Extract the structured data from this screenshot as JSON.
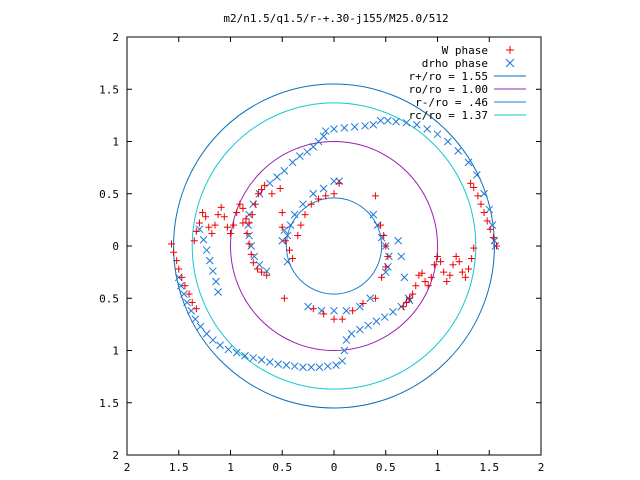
{
  "chart_data": {
    "type": "scatter",
    "title": "m2/n1.5/q1.5/r-+.30-j155/M25.0/512",
    "xlabel": "",
    "ylabel": "",
    "xlim": [
      -2,
      2
    ],
    "ylim": [
      -2,
      2
    ],
    "x_ticks": [
      -2,
      -1.5,
      -1,
      -0.5,
      0,
      0.5,
      1,
      1.5,
      2
    ],
    "y_ticks": [
      -2,
      -1.5,
      -1,
      -0.5,
      0,
      0.5,
      1,
      1.5,
      2
    ],
    "x_tick_labels": [
      "2",
      "1.5",
      "1",
      "0.5",
      "0",
      "0.5",
      "1",
      "1.5",
      "2"
    ],
    "y_tick_labels": [
      "2",
      "1.5",
      "1",
      "0.5",
      "0",
      "0.5",
      "1",
      "1.5",
      "2"
    ],
    "grid": false,
    "legend_position": "top-right",
    "circles": [
      {
        "name": "r+/ro = 1.55",
        "radius": 1.55,
        "color": "#0b6fb8"
      },
      {
        "name": "ro/ro = 1.00",
        "radius": 1.0,
        "color": "#9b20b5"
      },
      {
        "name": "r-/ro = .46",
        "radius": 0.46,
        "color": "#1a7fd0"
      },
      {
        "name": "rc/ro = 1.37",
        "radius": 1.37,
        "color": "#14c8d2"
      }
    ],
    "series": [
      {
        "name": "W phase",
        "marker": "plus",
        "color": "#ee0000",
        "points": [
          [
            -1.57,
            0.02
          ],
          [
            -1.55,
            -0.06
          ],
          [
            -1.52,
            -0.14
          ],
          [
            -1.5,
            -0.22
          ],
          [
            -1.47,
            -0.3
          ],
          [
            -1.44,
            -0.38
          ],
          [
            -1.4,
            -0.46
          ],
          [
            -1.37,
            -0.54
          ],
          [
            -1.33,
            -0.6
          ],
          [
            -1.35,
            0.05
          ],
          [
            -1.33,
            0.14
          ],
          [
            -1.3,
            0.22
          ],
          [
            -1.27,
            0.32
          ],
          [
            -1.24,
            0.28
          ],
          [
            -1.21,
            0.18
          ],
          [
            -1.18,
            0.12
          ],
          [
            -1.15,
            0.2
          ],
          [
            -1.12,
            0.3
          ],
          [
            -1.09,
            0.37
          ],
          [
            -1.06,
            0.28
          ],
          [
            -1.03,
            0.18
          ],
          [
            -1.0,
            0.12
          ],
          [
            -0.97,
            0.2
          ],
          [
            -0.94,
            0.32
          ],
          [
            -0.91,
            0.4
          ],
          [
            -0.88,
            0.36
          ],
          [
            -0.85,
            0.26
          ],
          [
            -0.82,
            0.22
          ],
          [
            -0.79,
            0.3
          ],
          [
            -0.76,
            0.4
          ],
          [
            -0.73,
            0.5
          ],
          [
            -0.7,
            0.54
          ],
          [
            -0.67,
            0.58
          ],
          [
            -0.88,
            0.22
          ],
          [
            -0.84,
            0.12
          ],
          [
            -0.82,
            0.02
          ],
          [
            -0.8,
            -0.08
          ],
          [
            -0.78,
            -0.16
          ],
          [
            -0.74,
            -0.22
          ],
          [
            -0.7,
            -0.25
          ],
          [
            -0.65,
            -0.28
          ],
          [
            -0.6,
            0.5
          ],
          [
            -0.52,
            0.55
          ],
          [
            -0.5,
            0.32
          ],
          [
            -0.5,
            0.18
          ],
          [
            -0.47,
            0.05
          ],
          [
            -0.43,
            -0.04
          ],
          [
            -0.4,
            -0.12
          ],
          [
            -0.35,
            0.1
          ],
          [
            -0.32,
            0.2
          ],
          [
            -0.28,
            0.3
          ],
          [
            -0.22,
            0.4
          ],
          [
            -0.15,
            0.45
          ],
          [
            -0.08,
            0.48
          ],
          [
            0.0,
            0.5
          ],
          [
            0.05,
            0.6
          ],
          [
            -0.48,
            -0.5
          ],
          [
            0.4,
            0.48
          ],
          [
            0.45,
            0.2
          ],
          [
            0.48,
            0.1
          ],
          [
            0.5,
            0.0
          ],
          [
            0.52,
            -0.1
          ],
          [
            0.5,
            -0.2
          ],
          [
            0.46,
            -0.3
          ],
          [
            0.4,
            -0.5
          ],
          [
            -0.2,
            -0.6
          ],
          [
            -0.1,
            -0.65
          ],
          [
            0.0,
            -0.7
          ],
          [
            0.08,
            -0.7
          ],
          [
            0.18,
            -0.62
          ],
          [
            0.28,
            -0.55
          ],
          [
            1.35,
            -0.02
          ],
          [
            1.33,
            -0.12
          ],
          [
            1.3,
            -0.22
          ],
          [
            1.27,
            -0.3
          ],
          [
            1.24,
            -0.25
          ],
          [
            1.21,
            -0.15
          ],
          [
            1.18,
            -0.1
          ],
          [
            1.15,
            -0.18
          ],
          [
            1.12,
            -0.28
          ],
          [
            1.09,
            -0.34
          ],
          [
            1.06,
            -0.25
          ],
          [
            1.03,
            -0.15
          ],
          [
            1.0,
            -0.1
          ],
          [
            0.97,
            -0.18
          ],
          [
            0.94,
            -0.3
          ],
          [
            0.91,
            -0.38
          ],
          [
            0.88,
            -0.34
          ],
          [
            0.85,
            -0.26
          ],
          [
            0.82,
            -0.28
          ],
          [
            0.79,
            -0.38
          ],
          [
            0.76,
            -0.46
          ],
          [
            0.73,
            -0.5
          ],
          [
            0.7,
            -0.54
          ],
          [
            0.67,
            -0.58
          ],
          [
            1.57,
            0.0
          ],
          [
            1.54,
            0.08
          ],
          [
            1.51,
            0.16
          ],
          [
            1.48,
            0.24
          ],
          [
            1.45,
            0.32
          ],
          [
            1.42,
            0.4
          ],
          [
            1.39,
            0.48
          ],
          [
            1.35,
            0.56
          ],
          [
            1.32,
            0.6
          ]
        ]
      },
      {
        "name": "drho phase",
        "marker": "cross",
        "color": "#1e78d8",
        "points": [
          [
            -1.5,
            -0.3
          ],
          [
            -1.48,
            -0.38
          ],
          [
            -1.45,
            -0.46
          ],
          [
            -1.42,
            -0.54
          ],
          [
            -1.38,
            -0.62
          ],
          [
            -1.34,
            -0.7
          ],
          [
            -1.29,
            -0.77
          ],
          [
            -1.23,
            -0.84
          ],
          [
            -1.17,
            -0.9
          ],
          [
            -1.1,
            -0.95
          ],
          [
            -1.02,
            -0.99
          ],
          [
            -0.94,
            -1.02
          ],
          [
            -0.86,
            -1.05
          ],
          [
            -0.78,
            -1.07
          ],
          [
            -0.7,
            -1.09
          ],
          [
            -0.62,
            -1.11
          ],
          [
            -0.54,
            -1.13
          ],
          [
            -0.46,
            -1.14
          ],
          [
            -0.38,
            -1.15
          ],
          [
            -0.3,
            -1.16
          ],
          [
            -0.22,
            -1.16
          ],
          [
            -0.14,
            -1.16
          ],
          [
            -0.06,
            -1.15
          ],
          [
            0.02,
            -1.14
          ],
          [
            0.08,
            -1.1
          ],
          [
            0.1,
            -1.0
          ],
          [
            0.12,
            -0.9
          ],
          [
            0.17,
            -0.84
          ],
          [
            0.25,
            -0.8
          ],
          [
            0.33,
            -0.76
          ],
          [
            0.41,
            -0.72
          ],
          [
            0.49,
            -0.68
          ],
          [
            0.57,
            -0.63
          ],
          [
            0.65,
            -0.58
          ],
          [
            0.73,
            -0.52
          ],
          [
            -1.3,
            0.16
          ],
          [
            -1.26,
            0.06
          ],
          [
            -1.23,
            -0.04
          ],
          [
            -1.2,
            -0.14
          ],
          [
            -1.17,
            -0.24
          ],
          [
            -1.14,
            -0.34
          ],
          [
            -1.12,
            -0.44
          ],
          [
            -0.72,
            0.5
          ],
          [
            -0.78,
            0.4
          ],
          [
            -0.82,
            0.3
          ],
          [
            -0.83,
            0.2
          ],
          [
            -0.82,
            0.1
          ],
          [
            -0.8,
            0.0
          ],
          [
            -0.77,
            -0.1
          ],
          [
            -0.72,
            -0.18
          ],
          [
            -0.65,
            -0.24
          ],
          [
            -0.62,
            0.6
          ],
          [
            -0.55,
            0.66
          ],
          [
            -0.48,
            0.72
          ],
          [
            -0.4,
            0.8
          ],
          [
            -0.33,
            0.86
          ],
          [
            -0.26,
            0.9
          ],
          [
            -0.2,
            0.95
          ],
          [
            -0.15,
            1.0
          ],
          [
            -0.1,
            1.05
          ],
          [
            -0.08,
            1.1
          ],
          [
            0.0,
            1.12
          ],
          [
            0.1,
            1.13
          ],
          [
            0.2,
            1.14
          ],
          [
            0.3,
            1.15
          ],
          [
            0.38,
            1.16
          ],
          [
            0.45,
            1.2
          ],
          [
            0.52,
            1.2
          ],
          [
            0.6,
            1.19
          ],
          [
            0.7,
            1.18
          ],
          [
            0.8,
            1.16
          ],
          [
            0.9,
            1.12
          ],
          [
            1.0,
            1.07
          ],
          [
            1.1,
            1.0
          ],
          [
            1.2,
            0.91
          ],
          [
            1.3,
            0.8
          ],
          [
            1.38,
            0.68
          ],
          [
            1.45,
            0.5
          ],
          [
            1.5,
            0.35
          ],
          [
            1.53,
            0.2
          ],
          [
            1.55,
            0.05
          ],
          [
            1.56,
            0.0
          ],
          [
            -0.45,
            -0.15
          ],
          [
            -0.5,
            0.05
          ],
          [
            -0.48,
            0.15
          ],
          [
            -0.45,
            0.1
          ],
          [
            -0.42,
            0.2
          ],
          [
            -0.38,
            0.3
          ],
          [
            -0.3,
            0.4
          ],
          [
            -0.2,
            0.5
          ],
          [
            -0.1,
            0.55
          ],
          [
            0.0,
            0.62
          ],
          [
            0.05,
            0.62
          ],
          [
            0.38,
            0.3
          ],
          [
            0.42,
            0.2
          ],
          [
            0.46,
            0.08
          ],
          [
            0.5,
            0.0
          ],
          [
            0.53,
            -0.1
          ],
          [
            0.52,
            -0.2
          ],
          [
            0.5,
            -0.25
          ],
          [
            -0.25,
            -0.58
          ],
          [
            -0.12,
            -0.62
          ],
          [
            0.0,
            -0.62
          ],
          [
            0.12,
            -0.62
          ],
          [
            0.25,
            -0.58
          ],
          [
            0.35,
            -0.5
          ],
          [
            0.72,
            -0.5
          ],
          [
            0.68,
            -0.3
          ],
          [
            0.65,
            -0.1
          ],
          [
            0.62,
            0.05
          ]
        ]
      }
    ]
  }
}
